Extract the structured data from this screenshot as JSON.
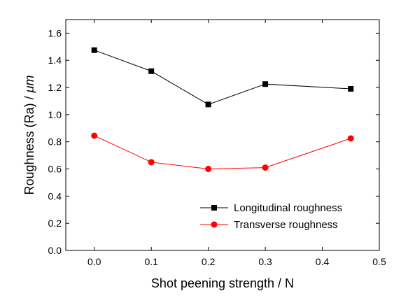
{
  "chart_data": {
    "type": "line",
    "xlabel": "Shot peening strength / N",
    "ylabel": "Roughness (Ra) / ",
    "ylabel_unit": "μm",
    "xlim": [
      -0.05,
      0.5
    ],
    "ylim": [
      0.0,
      1.7
    ],
    "x_ticks": [
      0.0,
      0.1,
      0.2,
      0.3,
      0.4,
      0.5
    ],
    "x_tick_labels": [
      "0.0",
      "0.1",
      "0.2",
      "0.3",
      "0.4",
      "0.5"
    ],
    "y_ticks": [
      0.0,
      0.2,
      0.4,
      0.6,
      0.8,
      1.0,
      1.2,
      1.4,
      1.6
    ],
    "y_tick_labels": [
      "0.0",
      "0.2",
      "0.4",
      "0.6",
      "0.8",
      "1.0",
      "1.2",
      "1.4",
      "1.6"
    ],
    "grid": false,
    "legend_position": "bottom-right",
    "x": [
      0.0,
      0.1,
      0.2,
      0.3,
      0.45
    ],
    "series": [
      {
        "name": "Longitudinal roughness",
        "values": [
          1.475,
          1.32,
          1.075,
          1.225,
          1.19
        ],
        "color": "#000000",
        "marker": "square"
      },
      {
        "name": "Transverse roughness",
        "values": [
          0.845,
          0.65,
          0.6,
          0.61,
          0.825
        ],
        "color": "#ff0000",
        "marker": "circle"
      }
    ]
  }
}
